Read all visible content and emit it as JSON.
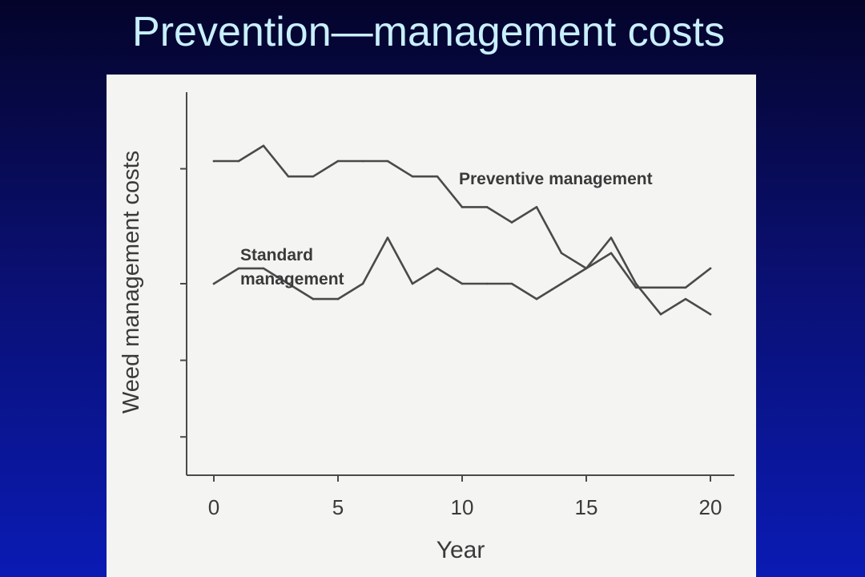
{
  "slide": {
    "title": "Prevention—management costs"
  },
  "colors": {
    "background_top": "#04042a",
    "background_bottom": "#0a1bb4",
    "title": "#c8f0ff",
    "panel": "#f4f4f2",
    "line": "#4a4a4a"
  },
  "chart_data": {
    "type": "line",
    "title": "",
    "xlabel": "Year",
    "ylabel": "Weed management costs",
    "xlim": [
      0,
      20
    ],
    "ylim": [
      0,
      10
    ],
    "x_ticks": [
      0,
      5,
      10,
      15,
      20
    ],
    "y_ticks": [
      1,
      3,
      5,
      8
    ],
    "y_tick_labels_shown": false,
    "grid": false,
    "legend": "inline annotations",
    "x": [
      0,
      1,
      2,
      3,
      4,
      5,
      6,
      7,
      8,
      9,
      10,
      11,
      12,
      13,
      14,
      15,
      16,
      17,
      18,
      19,
      20
    ],
    "series": [
      {
        "name": "Preventive management",
        "values": [
          8.2,
          8.2,
          8.6,
          7.8,
          7.8,
          8.2,
          8.2,
          8.2,
          7.8,
          7.8,
          7.0,
          7.0,
          6.6,
          7.0,
          5.8,
          5.4,
          5.8,
          4.9,
          4.9,
          4.9,
          5.4
        ]
      },
      {
        "name": "Standard management",
        "values": [
          5.0,
          5.4,
          5.4,
          5.0,
          4.6,
          4.6,
          5.0,
          6.2,
          5.0,
          5.4,
          5.0,
          5.0,
          5.0,
          4.6,
          5.0,
          5.4,
          6.2,
          5.0,
          4.2,
          4.6,
          4.2
        ]
      }
    ],
    "annotations": [
      {
        "text": "Preventive management",
        "series": "Preventive management"
      },
      {
        "text": "Standard\nmanagement",
        "series": "Standard management"
      }
    ]
  }
}
